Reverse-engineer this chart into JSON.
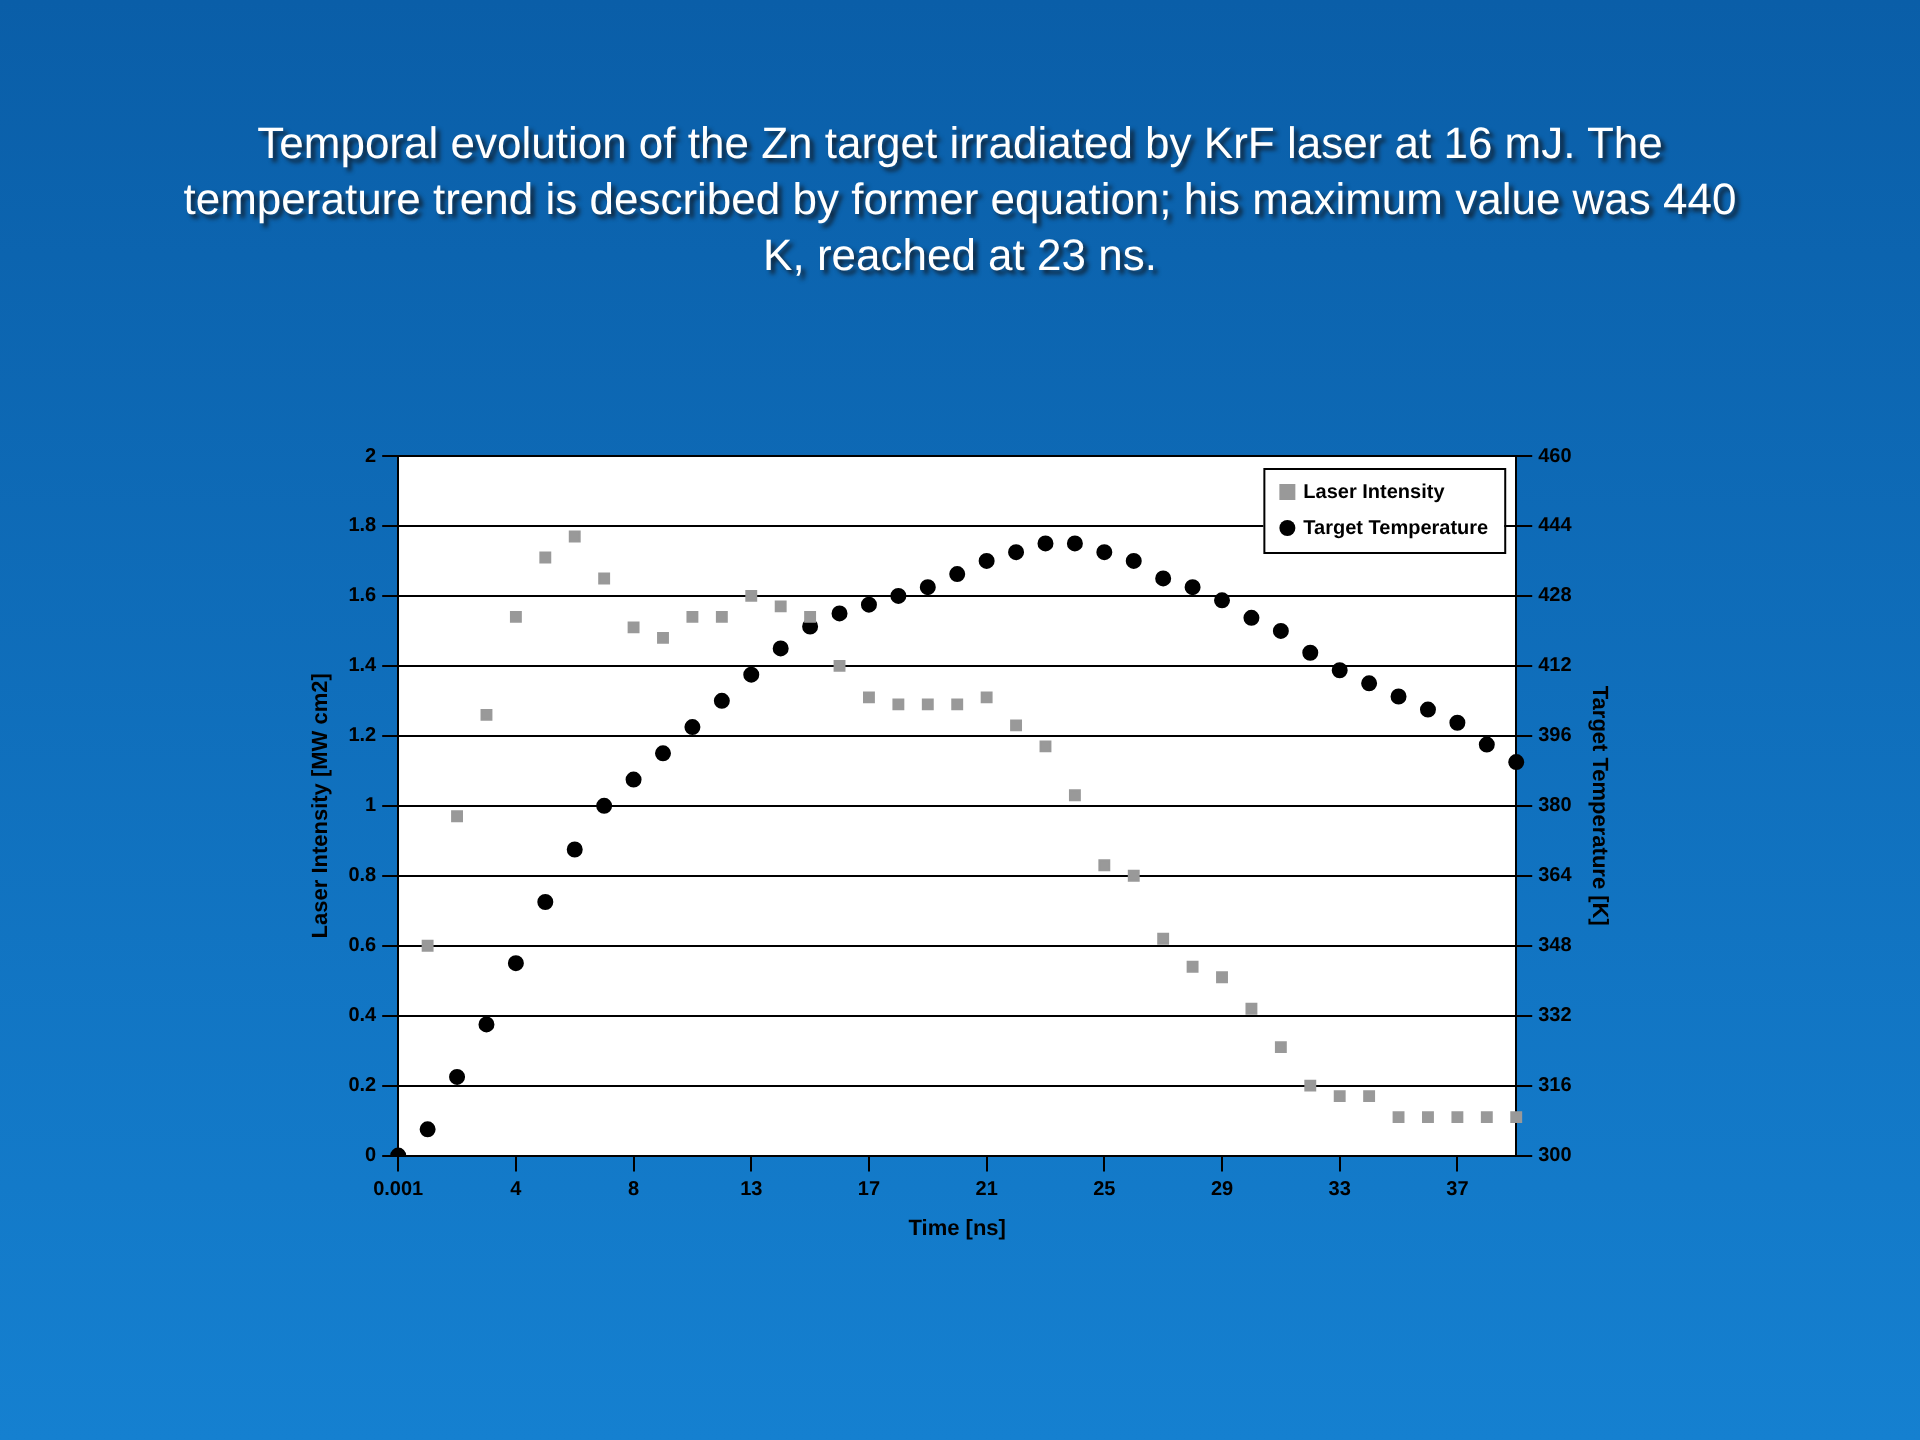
{
  "chart_data": {
    "type": "scatter",
    "title": "Temporal evolution of the Zn target irradiated by KrF laser at 16 mJ. The temperature trend is described by former equation; his maximum value was 440 K, reached at 23 ns.",
    "xlabel": "Time [ns]",
    "ylabel": "Laser Intensity [MW cm2]",
    "y2label": "Target Temperature [K]",
    "categories": [
      "0.001",
      null,
      null,
      null,
      "4",
      null,
      null,
      null,
      "8",
      null,
      null,
      null,
      "13",
      null,
      null,
      null,
      "17",
      null,
      null,
      null,
      "21",
      null,
      null,
      null,
      "25",
      null,
      null,
      null,
      "29",
      null,
      null,
      null,
      "33",
      null,
      null,
      null,
      "37",
      null,
      null
    ],
    "series": [
      {
        "name": "Laser Intensity",
        "color": "#999999",
        "marker": "square",
        "values": [
          null,
          0.6,
          0.97,
          1.26,
          1.54,
          1.71,
          1.77,
          1.65,
          1.51,
          1.48,
          1.54,
          1.54,
          1.6,
          1.57,
          1.54,
          1.4,
          1.31,
          1.29,
          1.29,
          1.29,
          1.31,
          1.23,
          1.17,
          1.03,
          0.83,
          0.8,
          0.62,
          0.54,
          0.51,
          0.42,
          0.31,
          0.2,
          0.17,
          0.17,
          0.11,
          0.11,
          0.11,
          0.11,
          0.11
        ]
      },
      {
        "name": "Target Temperature",
        "color": "#000000",
        "marker": "circle",
        "axis": "y2",
        "values": [
          300,
          306,
          318,
          330,
          344,
          358,
          370,
          380,
          386,
          392,
          398,
          404,
          410,
          416,
          421,
          424,
          426,
          428,
          430,
          433,
          436,
          438,
          440,
          440,
          438,
          436,
          432,
          430,
          427,
          423,
          420,
          415,
          411,
          408,
          405,
          402,
          399,
          394,
          390
        ]
      }
    ],
    "ylim": [
      0,
      2
    ],
    "yticks": [
      0,
      0.2,
      0.4,
      0.6,
      0.8,
      1,
      1.2,
      1.4,
      1.6,
      1.8,
      2
    ],
    "y2lim": [
      300,
      460
    ],
    "y2ticks": [
      300,
      316,
      332,
      348,
      364,
      380,
      396,
      412,
      428,
      444,
      460
    ],
    "grid": "y",
    "legend": "top right"
  }
}
